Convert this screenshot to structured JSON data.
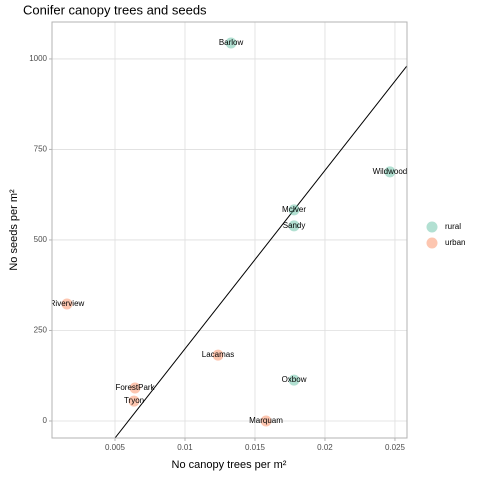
{
  "chart_data": {
    "type": "scatter",
    "title": "Conifer canopy trees and seeds",
    "x_label": "No canopy trees per m²",
    "y_label": "No seeds per m²",
    "series": [
      {
        "name": "rural",
        "color": "#66c2a5",
        "labels": [
          "Barlow",
          "Wildwood",
          "McIver",
          "Sandy",
          "Oxbow"
        ],
        "x": [
          0.01329,
          0.02464,
          0.01779,
          0.01779,
          0.01779
        ],
        "values": [
          1044,
          688,
          583,
          539,
          113
        ]
      },
      {
        "name": "urban",
        "color": "#fc8d62",
        "labels": [
          "Riverview",
          "Lacamas",
          "ForestPark",
          "Tryon",
          "Marquam"
        ],
        "x": [
          0.00157,
          0.01236,
          0.00643,
          0.00636,
          0.01579
        ],
        "values": [
          323,
          182,
          91,
          55,
          0
        ]
      }
    ],
    "trend_line": {
      "color": "#000000",
      "x": [
        0.005,
        0.02586
      ],
      "values": [
        -47,
        981
      ]
    },
    "xlim": [
      0.0005,
      0.02586
    ],
    "ylim": [
      -47,
      1102
    ],
    "xticks": [
      0.005,
      0.01,
      0.015,
      0.02,
      0.025
    ],
    "yticks": [
      0,
      250,
      500,
      750,
      1000
    ],
    "grid": true,
    "legend": "right"
  }
}
